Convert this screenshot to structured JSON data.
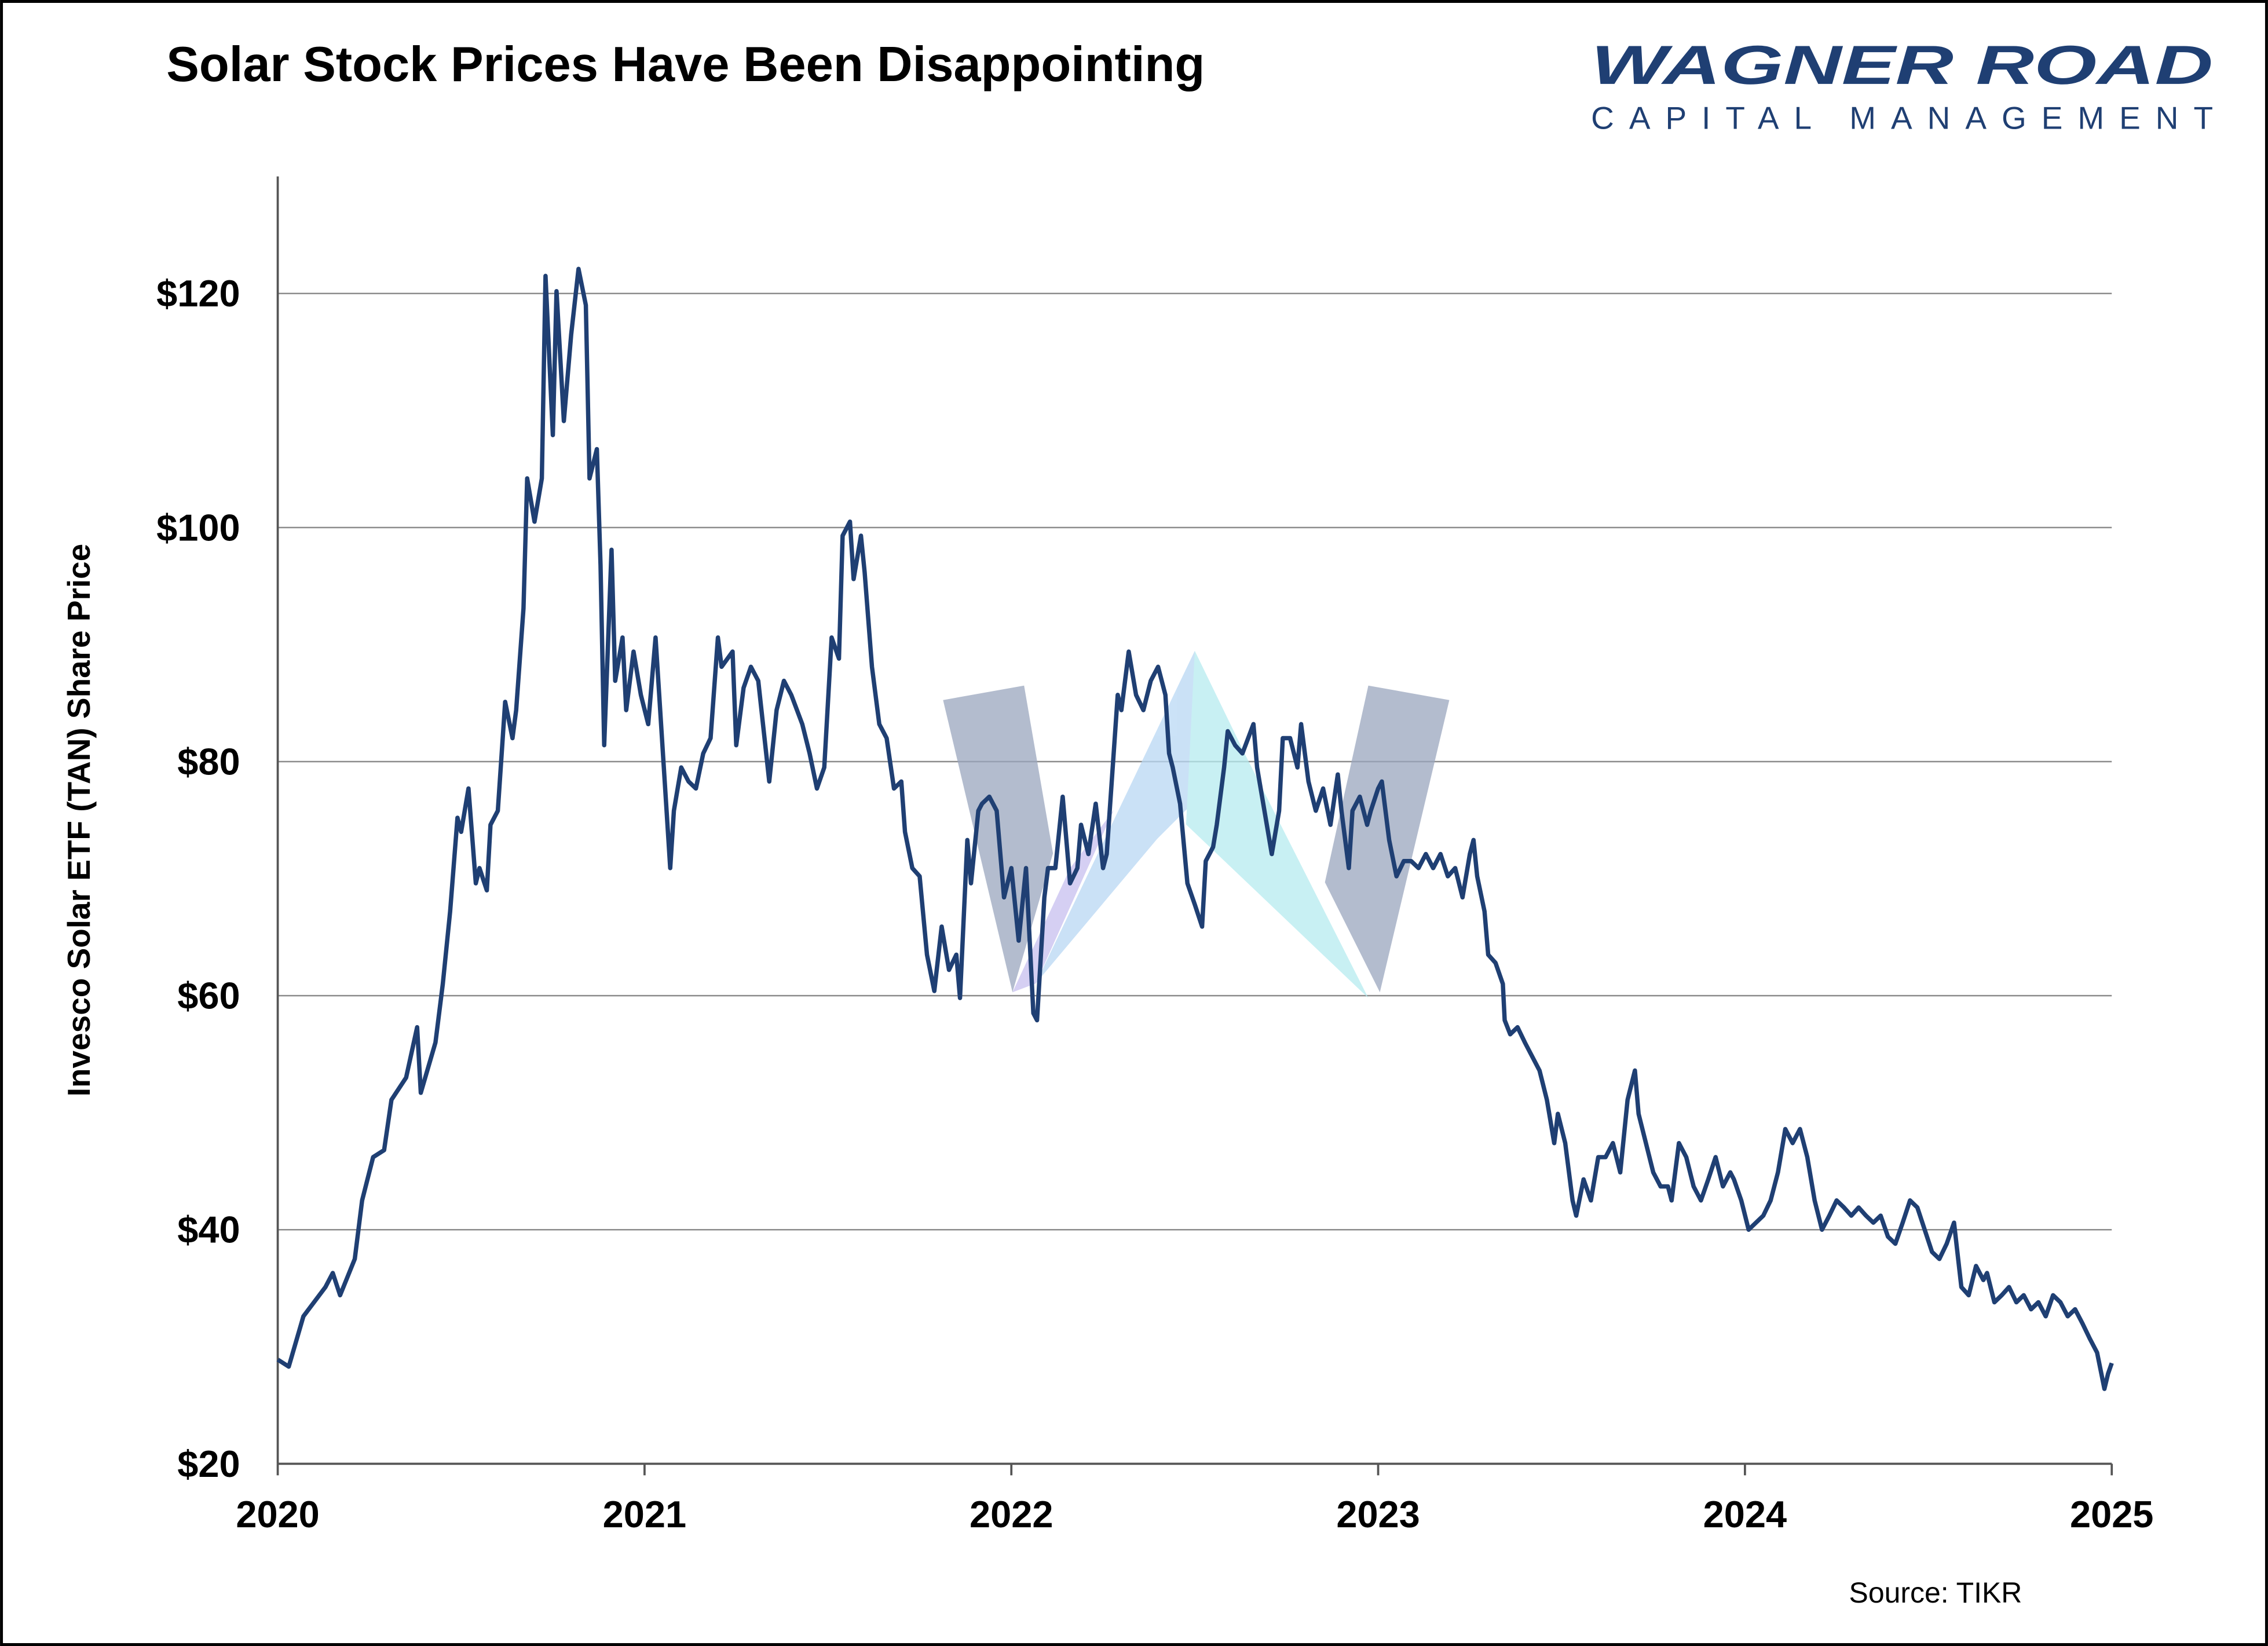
{
  "logo": {
    "title": "WAGNER ROAD",
    "subtitle": "CAPITAL MANAGEMENT"
  },
  "chart_data": {
    "type": "line",
    "title": "Solar Stock Prices Have Been Disappointing",
    "y_label": "Invesco Solar ETF (TAN) Share Price",
    "source": "Source: TIKR",
    "color": "#1f3f73",
    "grid": true,
    "xlim": [
      2020,
      2025
    ],
    "xticks": [
      2020,
      2021,
      2022,
      2023,
      2024,
      2025
    ],
    "ylim": [
      20,
      130
    ],
    "yticks": [
      {
        "value": 20,
        "label": "$20"
      },
      {
        "value": 40,
        "label": "$40"
      },
      {
        "value": 60,
        "label": "$60"
      },
      {
        "value": 80,
        "label": "$80"
      },
      {
        "value": 100,
        "label": "$100"
      },
      {
        "value": 120,
        "label": "$120"
      }
    ],
    "x": [
      2020.0,
      2020.03,
      2020.07,
      2020.13,
      2020.15,
      2020.17,
      2020.21,
      2020.23,
      2020.26,
      2020.29,
      2020.31,
      2020.35,
      2020.38,
      2020.39,
      2020.43,
      2020.45,
      2020.47,
      2020.49,
      2020.5,
      2020.52,
      2020.54,
      2020.55,
      2020.57,
      2020.58,
      2020.6,
      2020.62,
      2020.64,
      2020.65,
      2020.67,
      2020.68,
      2020.7,
      2020.72,
      2020.73,
      2020.75,
      2020.76,
      2020.78,
      2020.8,
      2020.82,
      2020.84,
      2020.85,
      2020.87,
      2020.88,
      2020.89,
      2020.91,
      2020.92,
      2020.94,
      2020.95,
      2020.97,
      2020.99,
      2021.01,
      2021.03,
      2021.04,
      2021.07,
      2021.08,
      2021.1,
      2021.12,
      2021.14,
      2021.16,
      2021.18,
      2021.2,
      2021.21,
      2021.24,
      2021.25,
      2021.27,
      2021.29,
      2021.31,
      2021.34,
      2021.36,
      2021.38,
      2021.4,
      2021.43,
      2021.45,
      2021.47,
      2021.49,
      2021.51,
      2021.53,
      2021.54,
      2021.56,
      2021.57,
      2021.59,
      2021.6,
      2021.62,
      2021.64,
      2021.66,
      2021.68,
      2021.7,
      2021.71,
      2021.73,
      2021.75,
      2021.77,
      2021.79,
      2021.81,
      2021.83,
      2021.85,
      2021.86,
      2021.88,
      2021.89,
      2021.91,
      2021.92,
      2021.94,
      2021.96,
      2021.98,
      2022.0,
      2022.02,
      2022.04,
      2022.06,
      2022.07,
      2022.09,
      2022.1,
      2022.12,
      2022.14,
      2022.16,
      2022.18,
      2022.19,
      2022.21,
      2022.23,
      2022.25,
      2022.26,
      2022.29,
      2022.3,
      2022.32,
      2022.34,
      2022.36,
      2022.38,
      2022.4,
      2022.42,
      2022.43,
      2022.44,
      2022.46,
      2022.48,
      2022.5,
      2022.52,
      2022.53,
      2022.55,
      2022.56,
      2022.58,
      2022.59,
      2022.61,
      2022.63,
      2022.66,
      2022.67,
      2022.69,
      2022.71,
      2022.73,
      2022.74,
      2022.76,
      2022.78,
      2022.79,
      2022.81,
      2022.83,
      2022.85,
      2022.87,
      2022.89,
      2022.9,
      2022.92,
      2022.93,
      2022.95,
      2022.97,
      2022.98,
      2023.0,
      2023.01,
      2023.03,
      2023.05,
      2023.07,
      2023.09,
      2023.11,
      2023.13,
      2023.15,
      2023.17,
      2023.19,
      2023.21,
      2023.23,
      2023.25,
      2023.26,
      2023.27,
      2023.29,
      2023.3,
      2023.32,
      2023.34,
      2023.345,
      2023.36,
      2023.38,
      2023.4,
      2023.42,
      2023.44,
      2023.46,
      2023.48,
      2023.49,
      2023.51,
      2023.53,
      2023.54,
      2023.56,
      2023.58,
      2023.6,
      2023.62,
      2023.64,
      2023.66,
      2023.68,
      2023.7,
      2023.71,
      2023.73,
      2023.75,
      2023.77,
      2023.79,
      2023.8,
      2023.82,
      2023.84,
      2023.86,
      2023.88,
      2023.9,
      2023.92,
      2023.94,
      2023.96,
      2023.97,
      2023.99,
      2024.01,
      2024.03,
      2024.05,
      2024.07,
      2024.09,
      2024.11,
      2024.13,
      2024.15,
      2024.17,
      2024.19,
      2024.21,
      2024.23,
      2024.25,
      2024.27,
      2024.29,
      2024.31,
      2024.33,
      2024.35,
      2024.37,
      2024.39,
      2024.41,
      2024.43,
      2024.45,
      2024.47,
      2024.49,
      2024.51,
      2024.53,
      2024.55,
      2024.57,
      2024.59,
      2024.61,
      2024.63,
      2024.65,
      2024.66,
      2024.68,
      2024.7,
      2024.72,
      2024.74,
      2024.76,
      2024.78,
      2024.8,
      2024.82,
      2024.84,
      2024.86,
      2024.88,
      2024.9,
      2024.92,
      2024.94,
      2024.96,
      2024.98,
      2024.99,
      2025.0
    ],
    "values": [
      28.9,
      28.3,
      32.6,
      35.1,
      36.3,
      34.4,
      37.5,
      42.5,
      46.2,
      46.8,
      51.1,
      53.0,
      57.3,
      51.7,
      56.0,
      61.0,
      67.2,
      75.2,
      74.0,
      77.7,
      69.6,
      70.9,
      69.0,
      74.6,
      75.8,
      85.1,
      82.0,
      84.4,
      93.1,
      104.2,
      100.5,
      104.2,
      121.5,
      107.9,
      120.2,
      109.1,
      116.5,
      122.1,
      119.0,
      104.2,
      106.7,
      96.8,
      81.4,
      98.1,
      86.9,
      90.6,
      84.4,
      89.4,
      85.7,
      83.2,
      90.6,
      85.7,
      70.9,
      75.8,
      79.5,
      78.3,
      77.7,
      80.7,
      82.0,
      90.6,
      88.1,
      89.4,
      81.4,
      86.3,
      88.1,
      86.9,
      78.3,
      84.4,
      86.9,
      85.7,
      83.2,
      80.7,
      77.7,
      79.5,
      90.6,
      88.8,
      99.3,
      100.5,
      95.6,
      99.3,
      96.2,
      88.1,
      83.2,
      82.0,
      77.7,
      78.3,
      74.0,
      70.9,
      70.2,
      63.5,
      60.4,
      65.9,
      62.2,
      63.5,
      59.8,
      73.3,
      69.6,
      75.8,
      76.4,
      77.0,
      75.8,
      68.4,
      70.9,
      64.7,
      70.9,
      58.5,
      57.9,
      68.4,
      70.9,
      70.9,
      77.0,
      69.6,
      70.9,
      74.6,
      72.1,
      76.4,
      70.9,
      72.1,
      85.7,
      84.4,
      89.4,
      85.7,
      84.4,
      86.9,
      88.1,
      85.7,
      80.7,
      79.5,
      76.4,
      69.6,
      67.8,
      65.9,
      71.5,
      72.7,
      74.6,
      79.5,
      82.6,
      81.4,
      80.7,
      83.2,
      79.5,
      75.8,
      72.1,
      75.8,
      82.0,
      82.0,
      79.5,
      83.2,
      78.3,
      75.8,
      77.7,
      74.6,
      78.9,
      75.8,
      70.9,
      75.8,
      77.0,
      74.6,
      75.8,
      77.7,
      78.3,
      73.3,
      70.2,
      71.5,
      71.5,
      70.9,
      72.1,
      70.9,
      72.1,
      70.2,
      70.9,
      68.4,
      72.1,
      73.3,
      70.2,
      67.2,
      63.5,
      62.8,
      61.0,
      57.9,
      56.7,
      57.3,
      56.0,
      54.8,
      53.6,
      51.1,
      47.4,
      49.9,
      47.4,
      42.5,
      41.2,
      44.3,
      42.5,
      46.2,
      46.2,
      47.4,
      44.9,
      51.1,
      53.6,
      49.9,
      47.4,
      44.9,
      43.7,
      43.7,
      42.5,
      47.4,
      46.2,
      43.7,
      42.5,
      44.3,
      46.2,
      43.7,
      44.9,
      44.3,
      42.5,
      40.0,
      40.6,
      41.2,
      42.5,
      44.9,
      48.6,
      47.4,
      48.6,
      46.2,
      42.5,
      40.0,
      41.2,
      42.5,
      41.9,
      41.2,
      41.9,
      41.2,
      40.6,
      41.2,
      39.4,
      38.8,
      40.6,
      42.5,
      41.9,
      40.0,
      38.1,
      37.5,
      38.8,
      40.6,
      35.1,
      34.4,
      36.9,
      35.7,
      36.3,
      33.8,
      34.4,
      35.1,
      33.8,
      34.4,
      33.2,
      33.8,
      32.6,
      34.4,
      33.8,
      32.6,
      33.2,
      32.0,
      30.7,
      29.5,
      26.4,
      27.7,
      28.6
    ]
  }
}
